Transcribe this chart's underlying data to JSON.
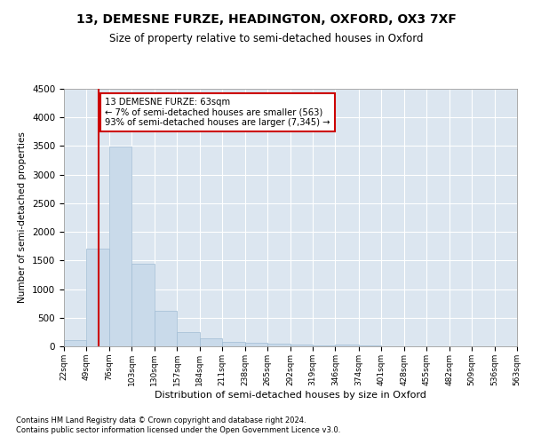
{
  "title": "13, DEMESNE FURZE, HEADINGTON, OXFORD, OX3 7XF",
  "subtitle": "Size of property relative to semi-detached houses in Oxford",
  "xlabel": "Distribution of semi-detached houses by size in Oxford",
  "ylabel": "Number of semi-detached properties",
  "footnote1": "Contains HM Land Registry data © Crown copyright and database right 2024.",
  "footnote2": "Contains public sector information licensed under the Open Government Licence v3.0.",
  "property_size": 63,
  "property_label": "13 DEMESNE FURZE: 63sqm",
  "pct_smaller": 7,
  "pct_larger": 93,
  "n_smaller": 563,
  "n_larger": 7345,
  "bar_color": "#c9daea",
  "bar_edge_color": "#a0bcd4",
  "line_color": "#cc0000",
  "annotation_edge_color": "#cc0000",
  "bg_color": "#dce6f0",
  "grid_color": "white",
  "ylim": [
    0,
    4500
  ],
  "yticks": [
    0,
    500,
    1000,
    1500,
    2000,
    2500,
    3000,
    3500,
    4000,
    4500
  ],
  "bins": [
    22,
    49,
    76,
    103,
    130,
    157,
    184,
    211,
    238,
    265,
    292,
    319,
    346,
    374,
    401,
    428,
    455,
    482,
    509,
    536,
    563
  ],
  "counts": [
    105,
    1700,
    3490,
    1440,
    620,
    255,
    140,
    78,
    63,
    48,
    28,
    18,
    38,
    9,
    7,
    5,
    3,
    2,
    2,
    2
  ]
}
